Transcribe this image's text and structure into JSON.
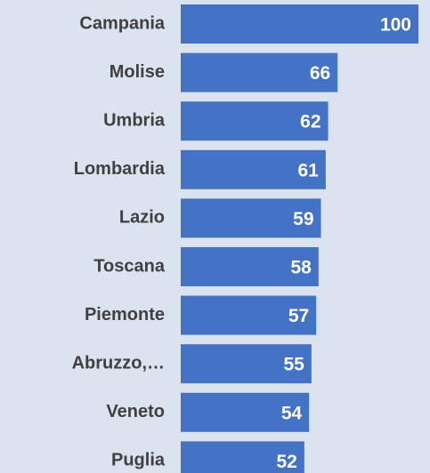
{
  "chart_data": {
    "type": "barh",
    "categories": [
      "Campania",
      "Molise",
      "Umbria",
      "Lombardia",
      "Lazio",
      "Toscana",
      "Piemonte",
      "Abruzzo,…",
      "Veneto",
      "Puglia"
    ],
    "values": [
      100,
      66,
      62,
      61,
      59,
      58,
      57,
      55,
      54,
      52
    ],
    "color": "#4472c4",
    "xlim": [
      0,
      100
    ]
  }
}
